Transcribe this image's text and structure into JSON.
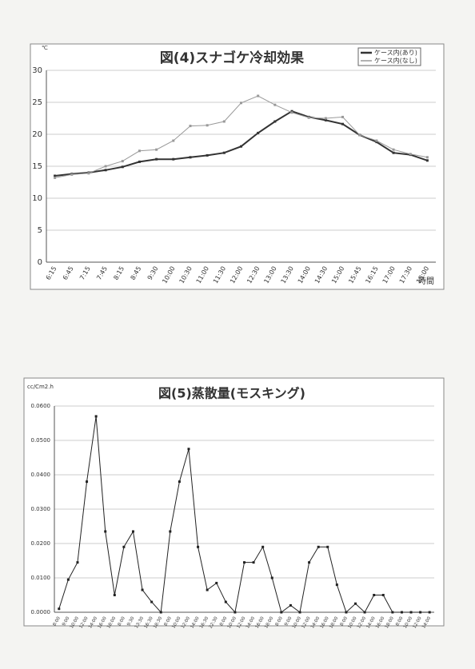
{
  "chart_data": [
    {
      "type": "line",
      "title": "図(4)スナゴケ冷却効果",
      "y_unit": "℃",
      "x_label": "時間",
      "categories": [
        "6:15",
        "6:45",
        "7:15",
        "7:45",
        "8:15",
        "8:45",
        "9:30",
        "10:00",
        "10:30",
        "11:00",
        "11:30",
        "12:00",
        "12:30",
        "13:00",
        "13:30",
        "14:00",
        "14:30",
        "15:00",
        "15:45",
        "16:15",
        "17:00",
        "17:30",
        "18:00"
      ],
      "series": [
        {
          "name": "ケース内(あり)",
          "color": "#333333",
          "width": 2,
          "values": [
            13.5,
            13.8,
            14.0,
            14.4,
            14.9,
            15.7,
            16.1,
            16.1,
            16.4,
            16.7,
            17.1,
            18.1,
            20.2,
            22.0,
            23.6,
            22.7,
            22.2,
            21.6,
            19.9,
            18.8,
            17.1,
            16.8,
            15.9
          ]
        },
        {
          "name": "ケース内(なし)",
          "color": "#999999",
          "width": 1,
          "values": [
            13.2,
            13.7,
            13.9,
            15.0,
            15.8,
            17.4,
            17.6,
            19.0,
            21.3,
            21.4,
            22.0,
            24.9,
            26.0,
            24.6,
            23.4,
            22.6,
            22.5,
            22.7,
            19.9,
            19.0,
            17.6,
            16.9,
            16.4
          ]
        }
      ],
      "ylim": [
        0,
        30
      ],
      "yticks": [
        0,
        5,
        10,
        15,
        20,
        25,
        30
      ],
      "grid": true,
      "legend": "top-right"
    },
    {
      "type": "line",
      "title": "図(5)蒸散量(モスキング)",
      "y_unit": "cc/Cm2.h",
      "categories": [
        "8:00",
        "9:00",
        "10:00",
        "12:00",
        "14:00",
        "16:00",
        "18:00",
        "8:00",
        "9:30",
        "13:30",
        "16:30",
        "18:30",
        "8:00",
        "10:00",
        "12:00",
        "14:00",
        "16:30",
        "22:30",
        "8:00",
        "10:00",
        "12:00",
        "14:00",
        "16:00",
        "18:00",
        "8:00",
        "9:00",
        "10:00",
        "12:00",
        "14:00",
        "16:00",
        "18:00",
        "8:00",
        "10:00",
        "12:00",
        "14:00",
        "16:00",
        "18:00",
        "8:00",
        "10:00",
        "12:00",
        "14:00"
      ],
      "values": [
        0.001,
        0.0095,
        0.0145,
        0.038,
        0.057,
        0.0235,
        0.005,
        0.019,
        0.0235,
        0.0065,
        0.003,
        0.0,
        0.0235,
        0.038,
        0.0475,
        0.019,
        0.0065,
        0.0085,
        0.003,
        0.0,
        0.0145,
        0.0145,
        0.019,
        0.01,
        0.0,
        0.002,
        0.0,
        0.0145,
        0.019,
        0.019,
        0.008,
        0.0,
        0.0025,
        0.0,
        0.005,
        0.005,
        0.0,
        0.0,
        0.0,
        0.0,
        0.0
      ],
      "color": "#222222",
      "ylim": [
        0,
        0.06
      ],
      "yticks": [
        {
          "value": 0,
          "label": "0.0000"
        },
        {
          "value": 0.01,
          "label": "0.0100"
        },
        {
          "value": 0.02,
          "label": "0.0200"
        },
        {
          "value": 0.03,
          "label": "0.0300"
        },
        {
          "value": 0.04,
          "label": "0.0400"
        },
        {
          "value": 0.05,
          "label": "0.0500"
        },
        {
          "value": 0.06,
          "label": "0.0600"
        }
      ],
      "grid": true
    }
  ]
}
